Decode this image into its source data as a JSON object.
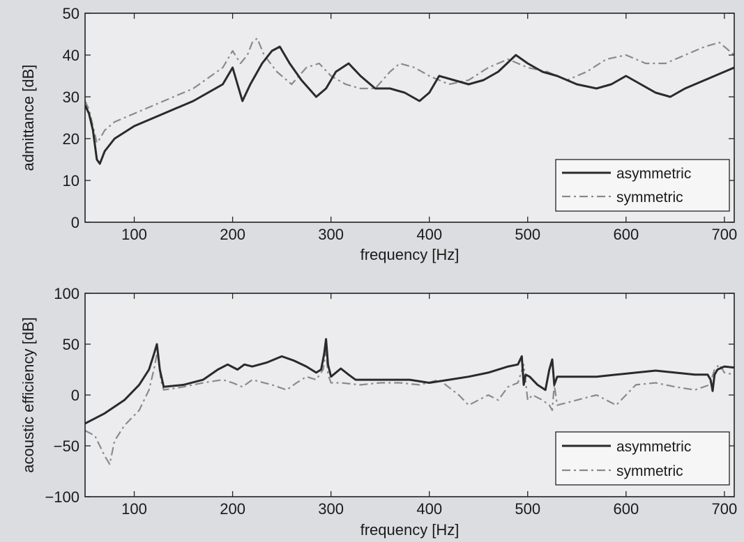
{
  "chart_data": [
    {
      "type": "line",
      "title": "",
      "xlabel": "frequency [Hz]",
      "ylabel": "admittance [dB]",
      "xlim": [
        50,
        710
      ],
      "ylim": [
        0,
        50
      ],
      "xticks": [
        100,
        200,
        300,
        400,
        500,
        600,
        700
      ],
      "yticks": [
        0,
        10,
        20,
        30,
        40,
        50
      ],
      "grid": false,
      "legend": "bottom-right",
      "series": [
        {
          "name": "asymmetric",
          "style": "solid",
          "color": "#2a2a2a",
          "x": [
            50,
            54,
            58,
            62,
            65,
            70,
            80,
            100,
            130,
            160,
            190,
            200,
            205,
            210,
            218,
            230,
            240,
            248,
            258,
            270,
            285,
            295,
            305,
            318,
            330,
            345,
            360,
            375,
            390,
            400,
            410,
            425,
            440,
            455,
            470,
            488,
            500,
            515,
            530,
            550,
            570,
            585,
            600,
            615,
            630,
            645,
            660,
            680,
            700,
            710
          ],
          "y": [
            28,
            26,
            22,
            15,
            14,
            17,
            20,
            23,
            26,
            29,
            33,
            37,
            33,
            29,
            33,
            38,
            41,
            42,
            38,
            34,
            30,
            32,
            36,
            38,
            35,
            32,
            32,
            31,
            29,
            31,
            35,
            34,
            33,
            34,
            36,
            40,
            38,
            36,
            35,
            33,
            32,
            33,
            35,
            33,
            31,
            30,
            32,
            34,
            36,
            37
          ]
        },
        {
          "name": "symmetric",
          "style": "dash-dot",
          "color": "#8a8a8a",
          "x": [
            50,
            54,
            58,
            62,
            65,
            70,
            80,
            100,
            130,
            160,
            190,
            200,
            208,
            215,
            220,
            225,
            232,
            245,
            260,
            275,
            288,
            300,
            315,
            330,
            345,
            360,
            370,
            385,
            400,
            420,
            440,
            460,
            480,
            500,
            520,
            540,
            560,
            580,
            600,
            620,
            640,
            660,
            680,
            695,
            710
          ],
          "y": [
            29,
            27,
            23,
            19,
            20,
            22,
            24,
            26,
            29,
            32,
            37,
            41,
            38,
            40,
            43,
            44,
            40,
            36,
            33,
            37,
            38,
            35,
            33,
            32,
            32,
            36,
            38,
            37,
            35,
            33,
            34,
            37,
            39,
            37,
            36,
            34,
            36,
            39,
            40,
            38,
            38,
            40,
            42,
            43,
            40
          ]
        }
      ]
    },
    {
      "type": "line",
      "title": "",
      "xlabel": "frequency [Hz]",
      "ylabel": "acoustic efficiency [dB]",
      "xlim": [
        50,
        710
      ],
      "ylim": [
        -100,
        100
      ],
      "xticks": [
        100,
        200,
        300,
        400,
        500,
        600,
        700
      ],
      "yticks": [
        -100,
        -50,
        0,
        50,
        100
      ],
      "grid": false,
      "legend": "bottom-right",
      "series": [
        {
          "name": "asymmetric",
          "style": "solid",
          "color": "#2a2a2a",
          "x": [
            50,
            70,
            90,
            105,
            115,
            120,
            123,
            126,
            130,
            150,
            170,
            185,
            195,
            205,
            212,
            220,
            235,
            250,
            262,
            275,
            285,
            290,
            293,
            295,
            297,
            300,
            310,
            318,
            325,
            340,
            360,
            380,
            400,
            420,
            440,
            460,
            480,
            490,
            494,
            496,
            498,
            502,
            510,
            518,
            522,
            525,
            527,
            530,
            550,
            570,
            590,
            610,
            630,
            650,
            670,
            683,
            686,
            688,
            690,
            693,
            700,
            710
          ],
          "y": [
            -28,
            -18,
            -5,
            10,
            25,
            40,
            50,
            25,
            8,
            10,
            15,
            25,
            30,
            25,
            30,
            28,
            32,
            38,
            34,
            28,
            22,
            25,
            40,
            55,
            30,
            18,
            26,
            20,
            15,
            15,
            15,
            15,
            12,
            15,
            18,
            22,
            28,
            30,
            38,
            10,
            20,
            18,
            10,
            5,
            25,
            35,
            10,
            18,
            18,
            18,
            20,
            22,
            24,
            22,
            20,
            20,
            15,
            4,
            20,
            25,
            28,
            27
          ]
        },
        {
          "name": "symmetric",
          "style": "dash-dot",
          "color": "#8a8a8a",
          "x": [
            50,
            60,
            70,
            75,
            80,
            90,
            105,
            115,
            120,
            124,
            127,
            130,
            150,
            170,
            190,
            200,
            210,
            220,
            240,
            255,
            265,
            275,
            285,
            292,
            295,
            297,
            300,
            310,
            330,
            350,
            370,
            390,
            410,
            430,
            440,
            450,
            460,
            470,
            480,
            490,
            496,
            500,
            505,
            515,
            522,
            525,
            527,
            530,
            550,
            570,
            590,
            610,
            630,
            650,
            670,
            685,
            690,
            695,
            700,
            710
          ],
          "y": [
            -35,
            -40,
            -60,
            -68,
            -45,
            -30,
            -15,
            5,
            25,
            45,
            15,
            5,
            8,
            12,
            15,
            12,
            8,
            15,
            10,
            5,
            12,
            18,
            15,
            25,
            45,
            20,
            12,
            12,
            10,
            12,
            12,
            10,
            15,
            0,
            -10,
            -5,
            0,
            -5,
            8,
            12,
            30,
            -5,
            0,
            -5,
            -10,
            -15,
            10,
            -10,
            -5,
            0,
            -10,
            10,
            12,
            8,
            5,
            10,
            25,
            30,
            22,
            20
          ]
        }
      ]
    }
  ]
}
